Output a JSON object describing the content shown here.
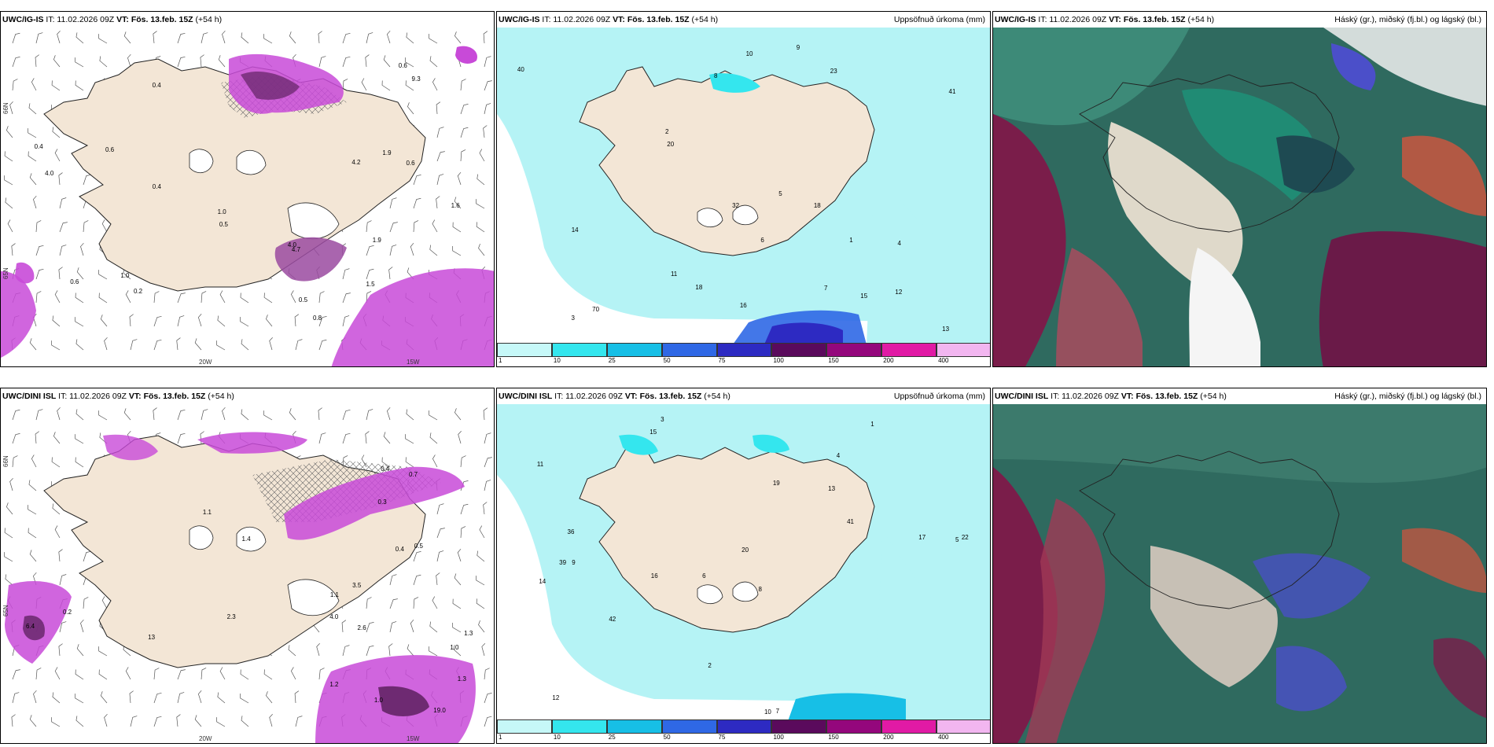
{
  "panels": {
    "p1": {
      "model": "UWC/IG-IS",
      "it": "IT: 11.02.2026 09Z",
      "vt_label": "VT:",
      "vt": "Fös. 13.feb. 15Z",
      "lead": "(+54 h)",
      "right": ""
    },
    "p2": {
      "model": "UWC/IG-IS",
      "it": "IT: 11.02.2026 09Z",
      "vt_label": "VT:",
      "vt": "Fös. 13.feb. 15Z",
      "lead": "(+54 h)",
      "right": "Uppsöfnuð úrkoma (mm)"
    },
    "p3": {
      "model": "UWC/IG-IS",
      "it": "IT: 11.02.2026 09Z",
      "vt_label": "VT:",
      "vt": "Fös. 13.feb. 15Z",
      "lead": "(+54 h)",
      "right": "Háský (gr.), miðský (fj.bl.) og lágský (bl.)"
    },
    "p4": {
      "model": "UWC/DINI ISL",
      "it": "IT: 11.02.2026 09Z",
      "vt_label": "VT:",
      "vt": "Fös. 13.feb. 15Z",
      "lead": "(+54 h)",
      "right": ""
    },
    "p5": {
      "model": "UWC/DINI ISL",
      "it": "IT: 11.02.2026 09Z",
      "vt_label": "VT:",
      "vt": "Fös. 13.feb. 15Z",
      "lead": "(+54 h)",
      "right": "Uppsöfnuð úrkoma (mm)"
    },
    "p6": {
      "model": "UWC/DINI ISL",
      "it": "IT: 11.02.2026 09Z",
      "vt_label": "VT:",
      "vt": "Fös. 13.feb. 15Z",
      "lead": "(+54 h)",
      "right": "Háský (gr.), miðský (fj.bl.) og lágský (bl.)"
    }
  },
  "grid_labels": {
    "lat_66": "66N",
    "lat_65": "65N",
    "lon_20": "20W",
    "lon_15": "15W"
  },
  "colorbar": {
    "ticks": [
      "1",
      "10",
      "25",
      "50",
      "75",
      "100",
      "150",
      "200",
      "400"
    ],
    "colors": [
      "#c6f8f8",
      "#34e6ee",
      "#17bfe6",
      "#2f68e5",
      "#2d2ac2",
      "#5a0a5c",
      "#94077c",
      "#e11aa5",
      "#f2b6f0"
    ]
  },
  "top_left_values": [
    "0.8",
    "0.4",
    "1.0",
    "0.6",
    "1.9",
    "0.5",
    "1.6",
    "0.4",
    "0.5",
    "0.2",
    "0.6",
    "0.4",
    "1.0",
    "4.0",
    "4.2",
    "0.6",
    "4.0",
    "9.3",
    "1.9",
    "0.6",
    "1.5",
    "4.7"
  ],
  "top_mid_values": [
    "3",
    "4",
    "5",
    "6",
    "8",
    "9",
    "12",
    "23",
    "15",
    "11",
    "13",
    "20",
    "18",
    "10",
    "7",
    "2",
    "1",
    "14",
    "32",
    "41",
    "40",
    "70",
    "16",
    "18"
  ],
  "bot_left_values": [
    "4.0",
    "1.3",
    "0.4",
    "1.0",
    "1.2",
    "0.3",
    "0.5",
    "1.4",
    "1.3",
    "1.0",
    "3.5",
    "1.1",
    "6.4",
    "2.6",
    "13",
    "19.0",
    "0.7",
    "0.2",
    "0.4",
    "1.1",
    "2.3"
  ],
  "bot_mid_values": [
    "3",
    "4",
    "5",
    "6",
    "8",
    "9",
    "11",
    "13",
    "14",
    "19",
    "20",
    "12",
    "15",
    "16",
    "10",
    "7",
    "2",
    "1",
    "41",
    "42",
    "36",
    "39",
    "22",
    "17"
  ]
}
